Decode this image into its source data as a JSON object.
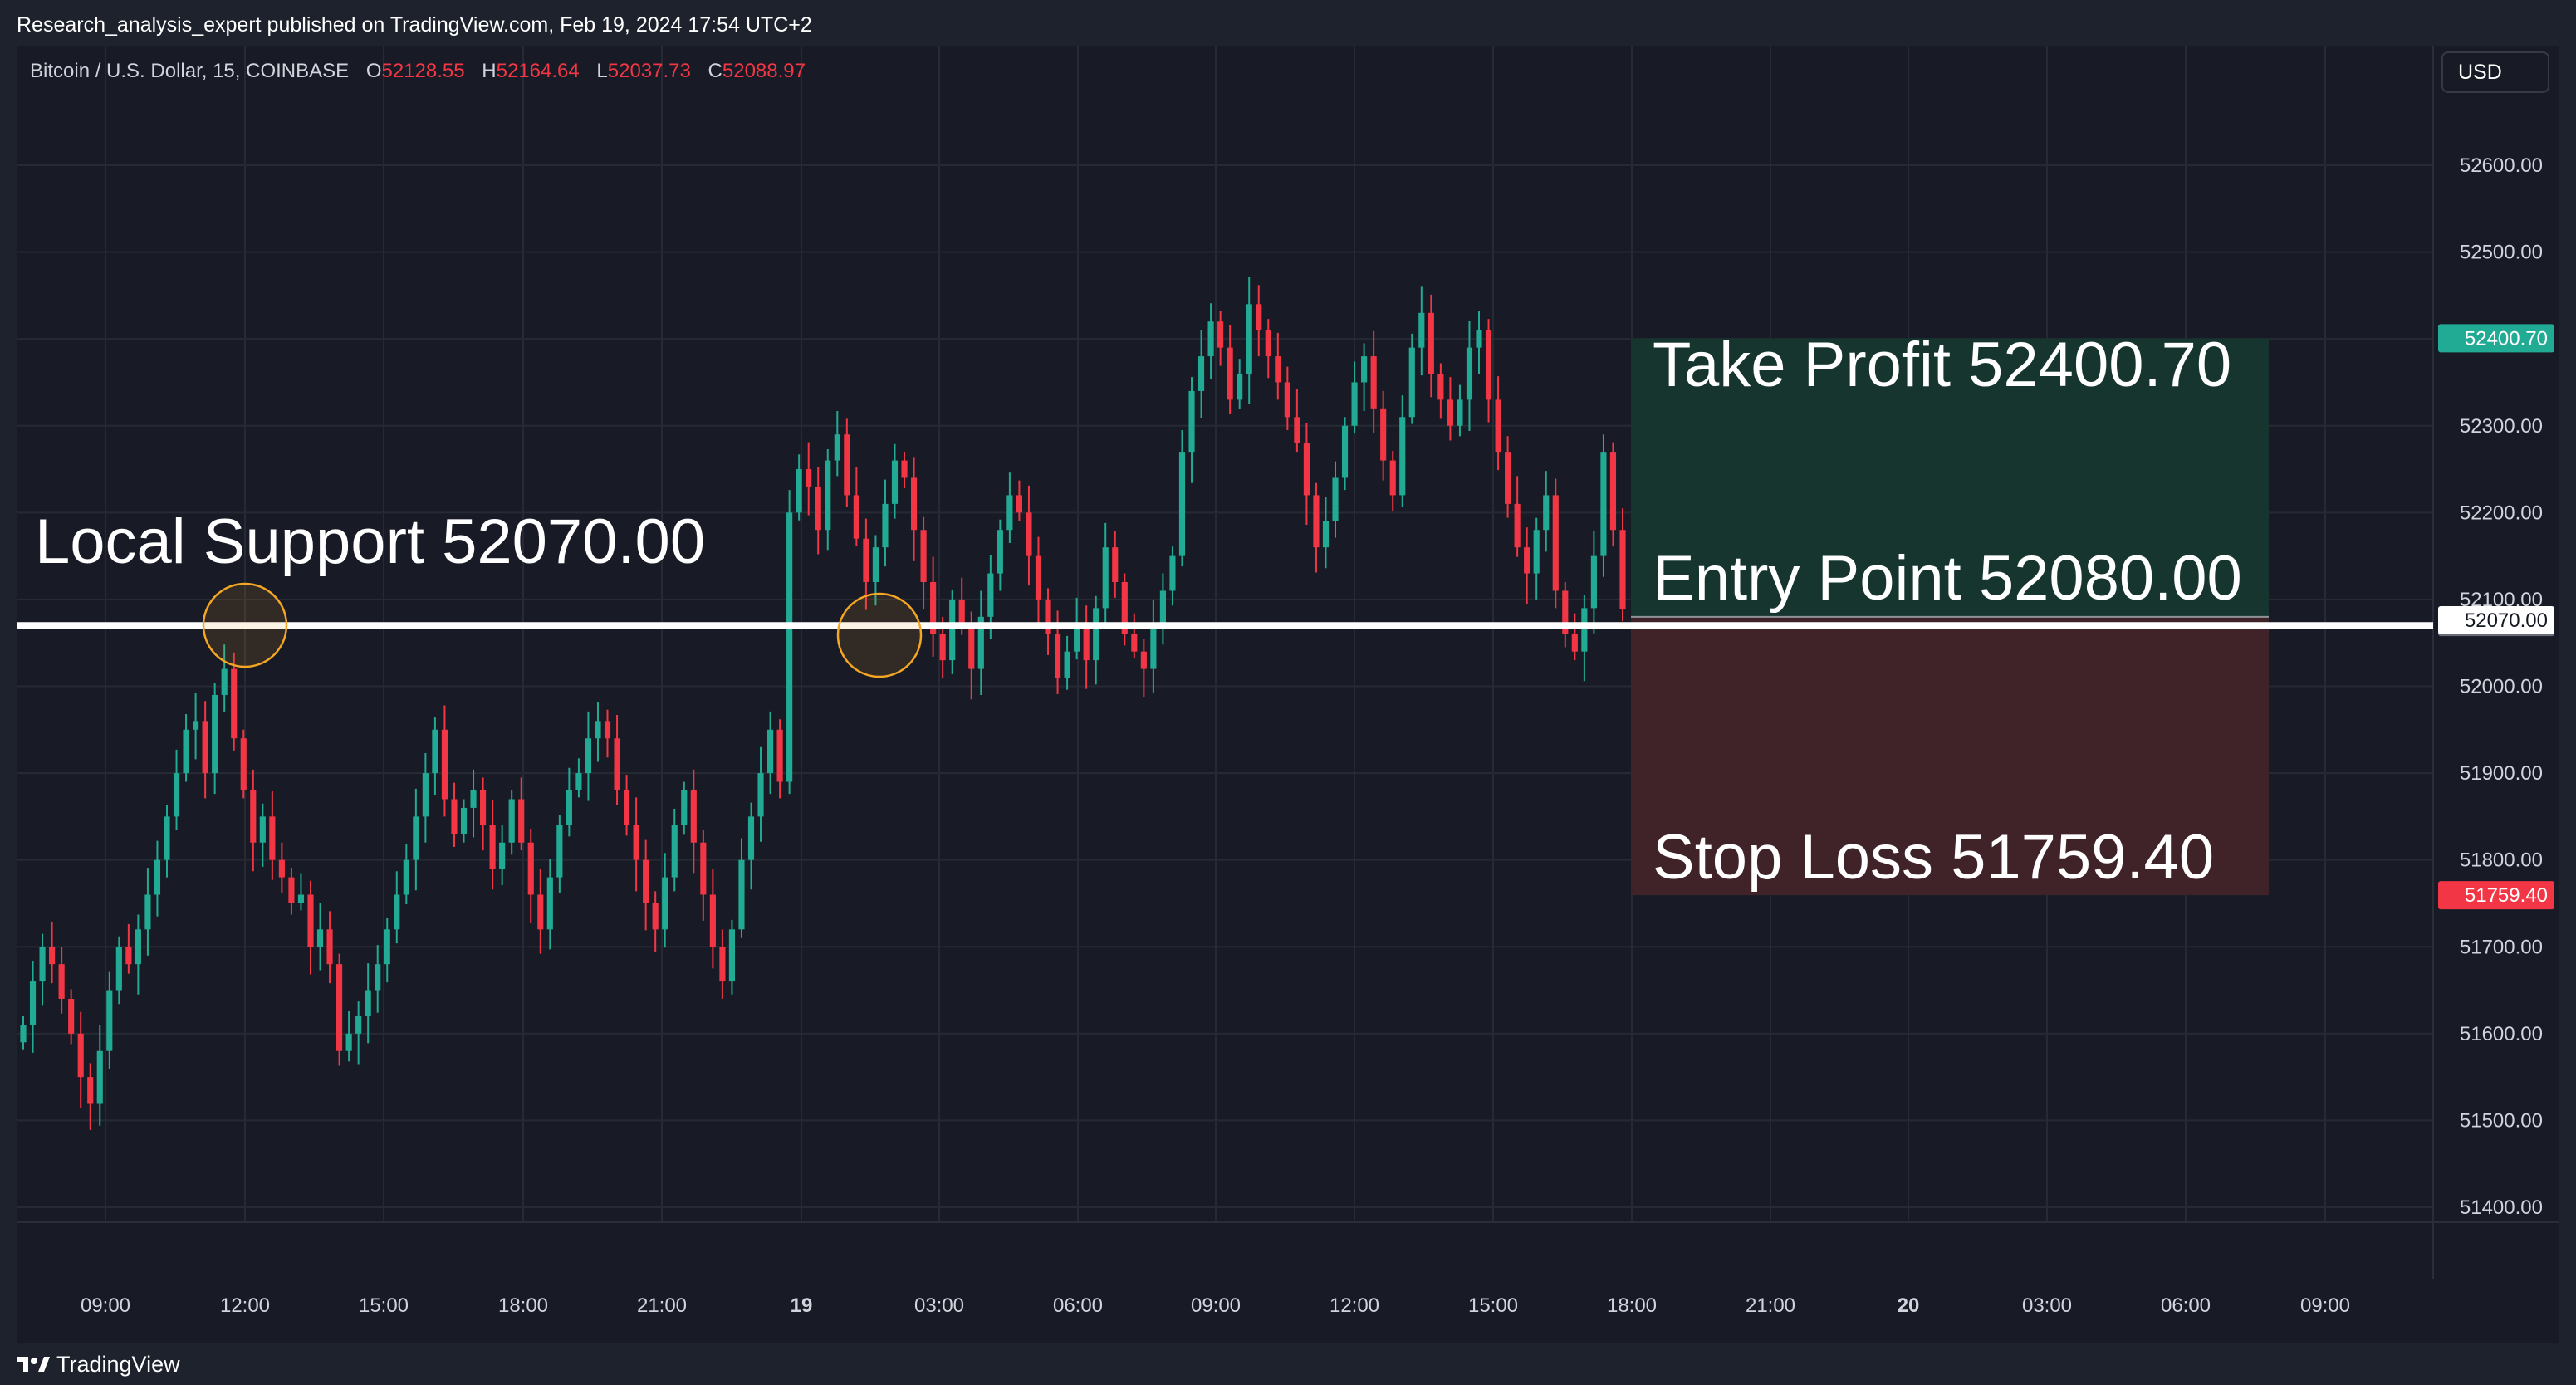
{
  "header": {
    "published": "Research_analysis_expert published on TradingView.com, Feb 19, 2024 17:54 UTC+2"
  },
  "symbol": {
    "name": "Bitcoin / U.S. Dollar, 15, COINBASE",
    "open_label": "O",
    "open": "52128.55",
    "high_label": "H",
    "high": "52164.64",
    "low_label": "L",
    "low": "52037.73",
    "close_label": "C",
    "close": "52088.97"
  },
  "currency": "USD",
  "brand": {
    "name": "TradingView",
    "icon": "tradingview-logo-icon"
  },
  "colors": {
    "up": "#22ab94",
    "down": "#f23645",
    "bg": "#181b25",
    "tp_zone": "#16352f",
    "sl_zone": "#402229"
  },
  "annotations": {
    "local_support": "Local Support 52070.00",
    "take_profit": "Take Profit 52400.70",
    "entry_point": "Entry Point 52080.00",
    "stop_loss": "Stop Loss 51759.40"
  },
  "chart_data": {
    "type": "candlestick",
    "y_axis": {
      "min": 51350,
      "max": 52700,
      "ticks": [
        "52600.00",
        "52500.00",
        "52400.00",
        "52300.00",
        "52200.00",
        "52100.00",
        "52000.00",
        "51900.00",
        "51800.00",
        "51700.00",
        "51600.00",
        "51500.00",
        "51400.00"
      ]
    },
    "x_axis": {
      "ticks": [
        "09:00",
        "12:00",
        "15:00",
        "18:00",
        "21:00",
        "19",
        "03:00",
        "06:00",
        "09:00",
        "12:00",
        "15:00",
        "18:00",
        "21:00",
        "20",
        "03:00",
        "06:00",
        "09:00"
      ]
    },
    "price_labels": {
      "take_profit": "52400.70",
      "entry": "52080.00",
      "support": "52070.00",
      "stop_loss": "51759.40"
    },
    "levels": {
      "take_profit": 52400.7,
      "entry": 52080.0,
      "support": 52070.0,
      "stop_loss": 51759.4
    },
    "close_series": [
      51610,
      51660,
      51700,
      51680,
      51640,
      51600,
      51550,
      51520,
      51580,
      51650,
      51700,
      51680,
      51720,
      51760,
      51800,
      51850,
      51900,
      51950,
      51960,
      51900,
      51990,
      52020,
      51940,
      51880,
      51820,
      51850,
      51800,
      51780,
      51750,
      51760,
      51700,
      51720,
      51680,
      51580,
      51600,
      51620,
      51650,
      51680,
      51720,
      51760,
      51800,
      51850,
      51900,
      51950,
      51870,
      51830,
      51860,
      51880,
      51840,
      51790,
      51820,
      51870,
      51820,
      51760,
      51720,
      51780,
      51840,
      51880,
      51900,
      51940,
      51960,
      51940,
      51880,
      51840,
      51800,
      51750,
      51720,
      51780,
      51840,
      51880,
      51820,
      51760,
      51700,
      51660,
      51720,
      51800,
      51850,
      51900,
      51950,
      51890,
      52200,
      52250,
      52230,
      52180,
      52260,
      52290,
      52220,
      52170,
      52120,
      52160,
      52210,
      52260,
      52240,
      52180,
      52120,
      52060,
      52030,
      52100,
      52070,
      52020,
      52080,
      52130,
      52180,
      52220,
      52200,
      52150,
      52100,
      52060,
      52010,
      52040,
      52070,
      52030,
      52090,
      52160,
      52120,
      52060,
      52040,
      52020,
      52070,
      52110,
      52150,
      52270,
      52340,
      52380,
      52420,
      52390,
      52330,
      52360,
      52440,
      52410,
      52380,
      52350,
      52310,
      52280,
      52220,
      52160,
      52190,
      52240,
      52300,
      52350,
      52380,
      52320,
      52260,
      52220,
      52310,
      52390,
      52430,
      52360,
      52330,
      52300,
      52330,
      52390,
      52410,
      52330,
      52270,
      52210,
      52160,
      52130,
      52180,
      52220,
      52110,
      52060,
      52040,
      52090,
      52150,
      52270,
      52180,
      52089
    ]
  }
}
